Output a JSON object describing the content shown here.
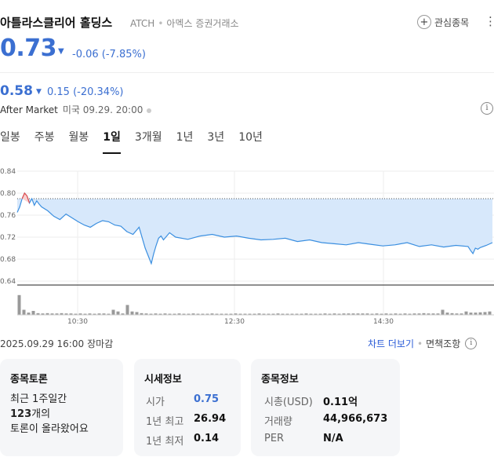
{
  "header": {
    "name": "아틀라스클리어 홀딩스",
    "ticker": "ATCH",
    "exchange": "아멕스 증권거래소",
    "favorite_label": "관심종목",
    "more": "⋮"
  },
  "quote": {
    "price": "0.73",
    "change": "-0.06",
    "change_pct": "(-7.85%)"
  },
  "after_market": {
    "price": "0.58",
    "change": "0.15",
    "change_pct": "(-20.34%)",
    "label": "After Market",
    "time": "미국 09.29. 20:00"
  },
  "tabs": [
    "일봉",
    "주봉",
    "월봉",
    "1일",
    "3개월",
    "1년",
    "3년",
    "10년"
  ],
  "active_tab": 3,
  "chart_data": {
    "type": "area",
    "y_ticks": [
      "0.84",
      "0.80",
      "0.76",
      "0.72",
      "0.68",
      "0.64"
    ],
    "x_ticks": [
      "10:30",
      "12:30",
      "14:30"
    ],
    "ylim": [
      0.64,
      0.84
    ],
    "reference": 0.79,
    "series": [
      {
        "x": [
          0,
          2,
          4,
          6,
          8,
          10,
          12,
          14,
          16,
          18,
          20,
          25,
          30,
          35,
          40,
          45,
          50,
          55,
          60,
          65,
          70,
          75,
          80,
          85,
          90,
          95,
          100,
          105,
          110,
          112,
          114,
          116,
          118,
          120,
          125,
          130,
          140,
          150,
          160,
          170,
          180,
          190,
          200,
          210,
          220,
          230,
          240,
          250,
          260,
          270,
          280,
          290,
          300,
          310,
          320,
          330,
          340,
          350,
          360,
          370,
          372,
          374,
          376,
          378,
          380,
          385,
          390
        ],
        "values": [
          0.765,
          0.775,
          0.79,
          0.8,
          0.795,
          0.782,
          0.79,
          0.778,
          0.786,
          0.78,
          0.775,
          0.768,
          0.758,
          0.752,
          0.762,
          0.755,
          0.748,
          0.742,
          0.738,
          0.745,
          0.75,
          0.748,
          0.742,
          0.74,
          0.73,
          0.725,
          0.738,
          0.7,
          0.672,
          0.69,
          0.705,
          0.718,
          0.722,
          0.715,
          0.728,
          0.72,
          0.716,
          0.722,
          0.725,
          0.72,
          0.722,
          0.718,
          0.715,
          0.716,
          0.718,
          0.712,
          0.715,
          0.71,
          0.708,
          0.706,
          0.71,
          0.707,
          0.704,
          0.706,
          0.71,
          0.703,
          0.706,
          0.702,
          0.705,
          0.703,
          0.696,
          0.69,
          0.7,
          0.698,
          0.701,
          0.705,
          0.71
        ]
      }
    ],
    "volume": [
      0.7,
      0.18,
      0.08,
      0.14,
      0.06,
      0.05,
      0.06,
      0.05,
      0.05,
      0.06,
      0.05,
      0.05,
      0.04,
      0.05,
      0.04,
      0.05,
      0.04,
      0.05,
      0.05,
      0.04,
      0.18,
      0.12,
      0.05,
      0.35,
      0.12,
      0.1,
      0.06,
      0.05,
      0.04,
      0.05,
      0.04,
      0.05,
      0.04,
      0.04,
      0.05,
      0.04,
      0.04,
      0.05,
      0.04,
      0.04,
      0.04,
      0.05,
      0.04,
      0.04,
      0.04,
      0.04,
      0.05,
      0.04,
      0.04,
      0.04,
      0.04,
      0.05,
      0.04,
      0.04,
      0.04,
      0.05,
      0.04,
      0.04,
      0.04,
      0.04,
      0.04,
      0.05,
      0.04,
      0.04,
      0.04,
      0.05,
      0.04,
      0.05,
      0.04,
      0.05,
      0.05,
      0.05,
      0.05,
      0.05,
      0.05,
      0.04,
      0.05,
      0.04,
      0.05,
      0.04,
      0.05,
      0.04,
      0.05,
      0.04,
      0.05,
      0.05,
      0.06,
      0.05,
      0.05,
      0.05,
      0.18,
      0.08,
      0.06,
      0.05,
      0.05,
      0.12,
      0.08,
      0.08,
      0.09,
      0.1,
      0.12
    ],
    "colors": {
      "line": "#3b8fe0",
      "fill": "#d7e8fb",
      "up": "#e24b4b",
      "volume": "#999999"
    }
  },
  "summary": {
    "date": "2025.09.29 16:00",
    "status": "장마감",
    "chart_more": "차트 더보기",
    "disclaimer": "면책조항"
  },
  "cards": {
    "talk": {
      "title": "종목토론",
      "line1": "최근 1주일간",
      "count": "123",
      "count_suffix": "개의",
      "line3": "토론이 올라왔어요"
    },
    "market": {
      "title": "시세정보",
      "rows": [
        {
          "label": "시가",
          "value": "0.75"
        },
        {
          "label": "1년 최고",
          "value": "26.94"
        },
        {
          "label": "1년 최저",
          "value": "0.14"
        }
      ]
    },
    "info": {
      "title": "종목정보",
      "rows": [
        {
          "label": "시총(USD)",
          "value": "0.11억"
        },
        {
          "label": "거래량",
          "value": "44,966,673"
        },
        {
          "label": "PER",
          "value": "N/A"
        }
      ]
    }
  }
}
